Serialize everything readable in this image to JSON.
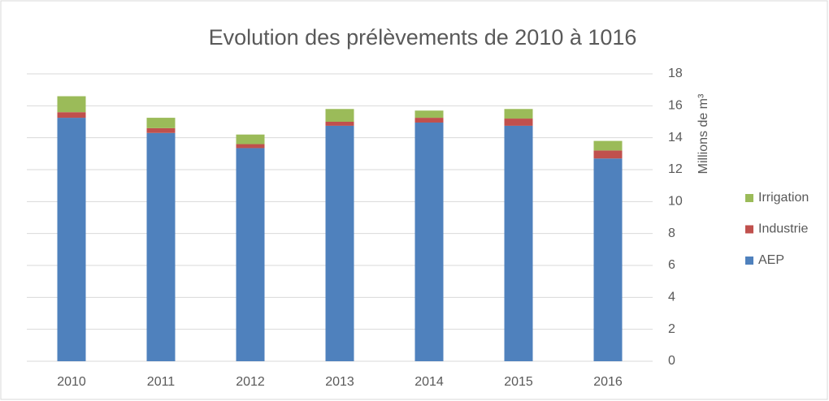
{
  "chart_data": {
    "type": "stacked_bar",
    "title": "Evolution des prélèvements de 2010 à 1016",
    "y_axis_label": "Millions de m³",
    "categories": [
      "2010",
      "2011",
      "2012",
      "2013",
      "2014",
      "2015",
      "2016"
    ],
    "series": [
      {
        "name": "AEP",
        "color": "#4f81bd",
        "values": [
          15.25,
          14.3,
          13.35,
          14.75,
          14.95,
          14.75,
          12.7
        ]
      },
      {
        "name": "Industrie",
        "color": "#c0504d",
        "values": [
          0.35,
          0.3,
          0.25,
          0.25,
          0.3,
          0.45,
          0.5
        ]
      },
      {
        "name": "Irrigation",
        "color": "#9bbb59",
        "values": [
          1.0,
          0.65,
          0.6,
          0.8,
          0.45,
          0.6,
          0.6
        ]
      }
    ],
    "ylim": [
      0,
      18
    ],
    "yticks": [
      0,
      2,
      4,
      6,
      8,
      10,
      12,
      14,
      16,
      18
    ],
    "y_axis_side": "right",
    "grid": true,
    "legend": "right"
  }
}
